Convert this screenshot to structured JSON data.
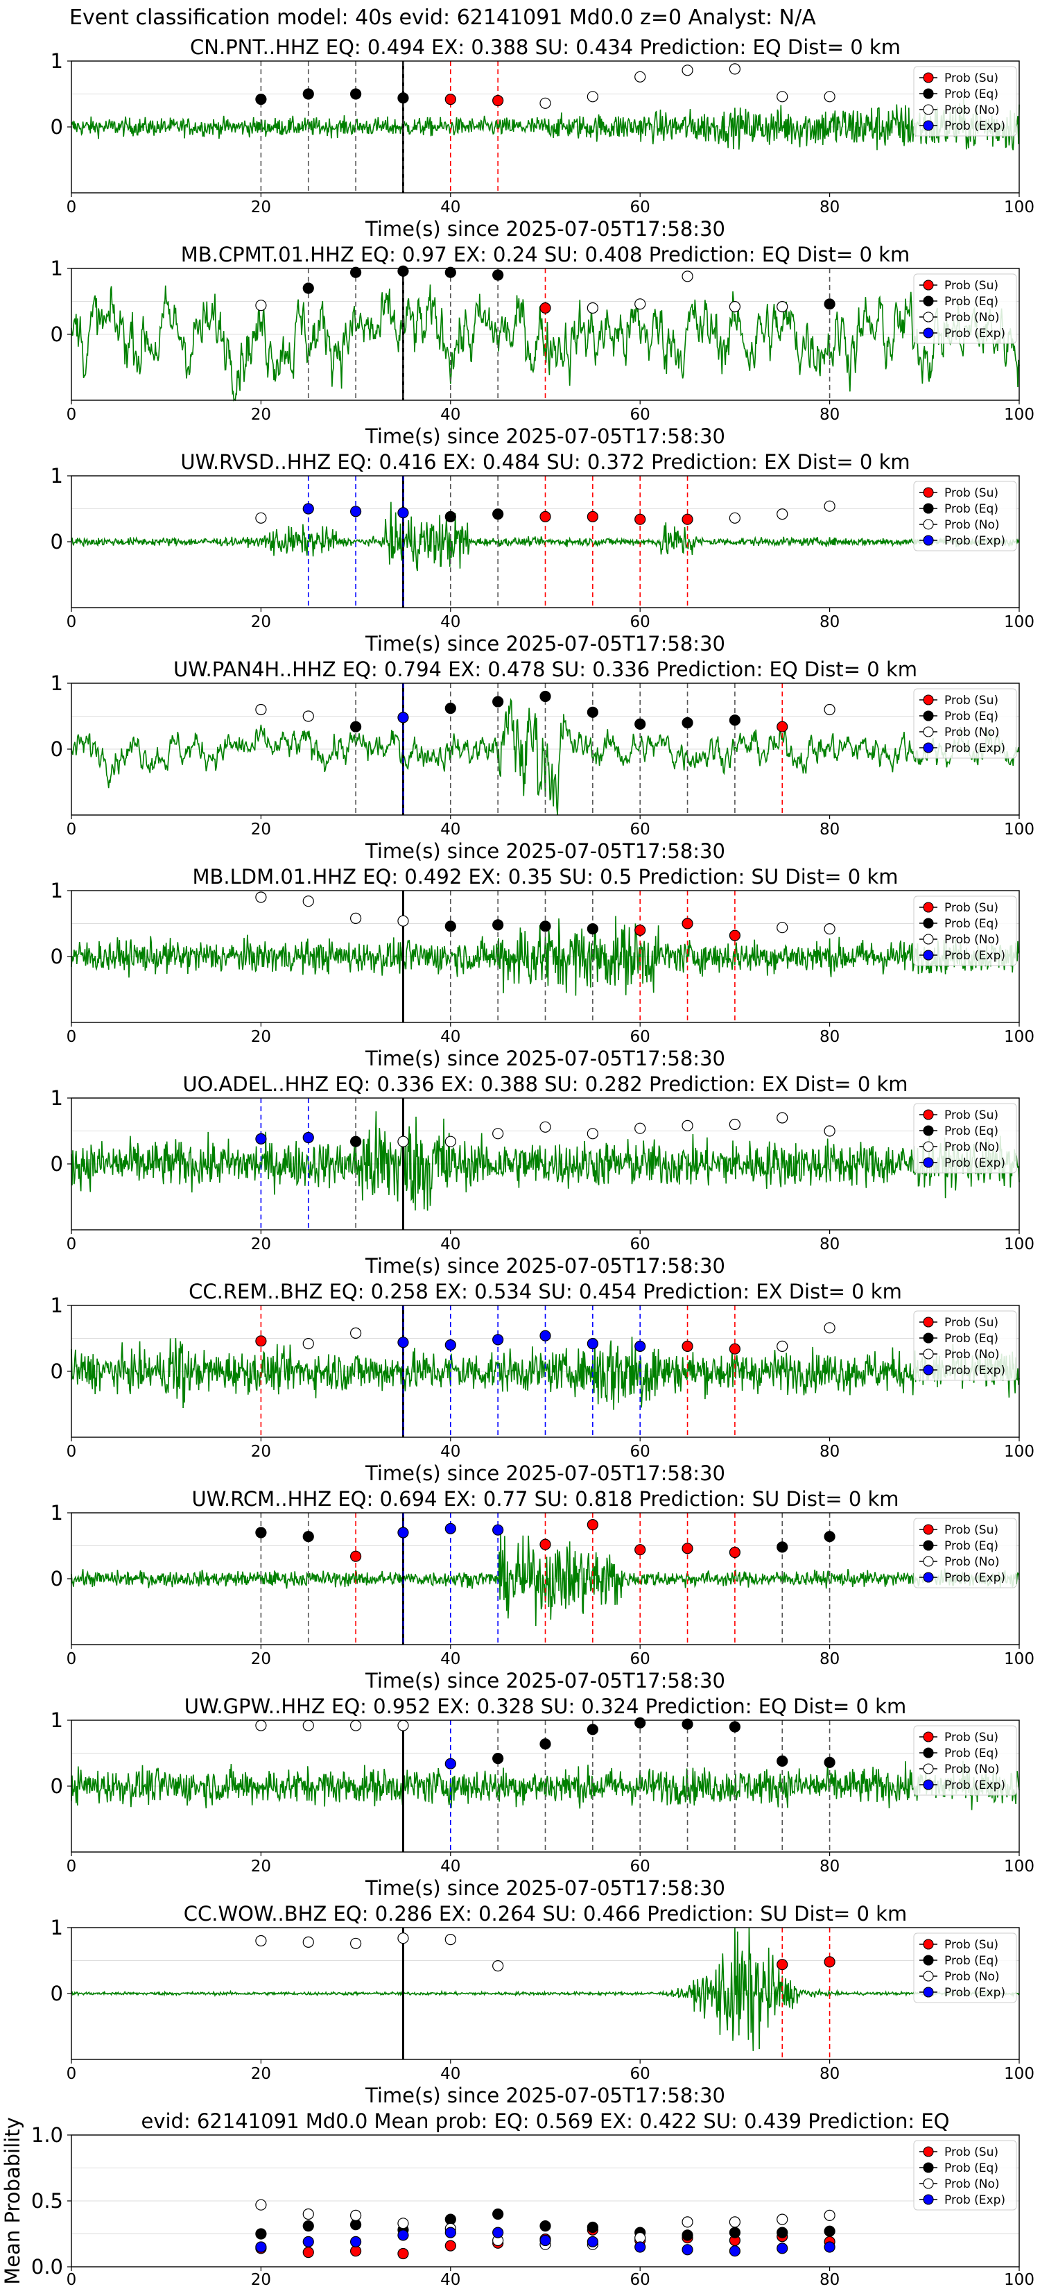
{
  "figure_title": "Event classification model: 40s evid: 62141091 Md0.0 z=0 Analyst: N/A",
  "colors": {
    "waveform": "#008000",
    "su": "#ff0000",
    "eq": "#000000",
    "no": "#ffffff",
    "exp": "#0000ff",
    "grid": "#dddddd"
  },
  "legend": [
    "Prob (Su)",
    "Prob (Eq)",
    "Prob (No)",
    "Prob (Exp)"
  ],
  "chart_data": [
    {
      "type": "line",
      "station": "CN.PNT..HHZ",
      "title": "CN.PNT..HHZ   EQ: 0.494  EX: 0.388  SU: 0.434   Prediction: EQ    Dist= 0 km",
      "xlabel": "Time(s) since 2025-07-05T17:58:30",
      "xlim": [
        0,
        100
      ],
      "ylim": [
        -1,
        1
      ],
      "xticks": [
        "0",
        "20",
        "40",
        "60",
        "80",
        "100"
      ],
      "yticks": [
        "1",
        "0"
      ],
      "event_time": 35,
      "points": [
        {
          "t": 20,
          "p": 0.42,
          "cls": "eq"
        },
        {
          "t": 25,
          "p": 0.5,
          "cls": "eq"
        },
        {
          "t": 30,
          "p": 0.5,
          "cls": "eq"
        },
        {
          "t": 35,
          "p": 0.44,
          "cls": "eq"
        },
        {
          "t": 40,
          "p": 0.42,
          "cls": "su"
        },
        {
          "t": 45,
          "p": 0.4,
          "cls": "su"
        },
        {
          "t": 50,
          "p": 0.36,
          "cls": "no"
        },
        {
          "t": 55,
          "p": 0.46,
          "cls": "no"
        },
        {
          "t": 60,
          "p": 0.76,
          "cls": "no"
        },
        {
          "t": 65,
          "p": 0.86,
          "cls": "no"
        },
        {
          "t": 70,
          "p": 0.88,
          "cls": "no"
        },
        {
          "t": 75,
          "p": 0.46,
          "cls": "no"
        },
        {
          "t": 80,
          "p": 0.46,
          "cls": "no"
        }
      ]
    },
    {
      "type": "line",
      "station": "MB.CPMT.01.HHZ",
      "title": "MB.CPMT.01.HHZ   EQ: 0.97  EX: 0.24  SU: 0.408   Prediction: EQ    Dist= 0 km",
      "xlabel": "Time(s) since 2025-07-05T17:58:30",
      "xlim": [
        0,
        100
      ],
      "ylim": [
        -1,
        1
      ],
      "xticks": [
        "0",
        "20",
        "40",
        "60",
        "80",
        "100"
      ],
      "yticks": [
        "1",
        "0"
      ],
      "event_time": 35,
      "points": [
        {
          "t": 20,
          "p": 0.44,
          "cls": "no"
        },
        {
          "t": 25,
          "p": 0.7,
          "cls": "eq"
        },
        {
          "t": 30,
          "p": 0.94,
          "cls": "eq"
        },
        {
          "t": 35,
          "p": 0.96,
          "cls": "eq"
        },
        {
          "t": 40,
          "p": 0.94,
          "cls": "eq"
        },
        {
          "t": 45,
          "p": 0.9,
          "cls": "eq"
        },
        {
          "t": 50,
          "p": 0.4,
          "cls": "su"
        },
        {
          "t": 55,
          "p": 0.4,
          "cls": "no"
        },
        {
          "t": 60,
          "p": 0.46,
          "cls": "no"
        },
        {
          "t": 65,
          "p": 0.88,
          "cls": "no"
        },
        {
          "t": 70,
          "p": 0.42,
          "cls": "no"
        },
        {
          "t": 75,
          "p": 0.42,
          "cls": "no"
        },
        {
          "t": 80,
          "p": 0.46,
          "cls": "eq"
        }
      ]
    },
    {
      "type": "line",
      "station": "UW.RVSD..HHZ",
      "title": "UW.RVSD..HHZ   EQ: 0.416  EX: 0.484  SU: 0.372   Prediction: EX    Dist= 0 km",
      "xlabel": "Time(s) since 2025-07-05T17:58:30",
      "xlim": [
        0,
        100
      ],
      "ylim": [
        -1,
        1
      ],
      "xticks": [
        "0",
        "20",
        "40",
        "60",
        "80",
        "100"
      ],
      "yticks": [
        "1",
        "0"
      ],
      "event_time": 35,
      "points": [
        {
          "t": 20,
          "p": 0.36,
          "cls": "no"
        },
        {
          "t": 25,
          "p": 0.5,
          "cls": "exp"
        },
        {
          "t": 30,
          "p": 0.46,
          "cls": "exp"
        },
        {
          "t": 35,
          "p": 0.44,
          "cls": "exp"
        },
        {
          "t": 40,
          "p": 0.38,
          "cls": "eq"
        },
        {
          "t": 45,
          "p": 0.42,
          "cls": "eq"
        },
        {
          "t": 50,
          "p": 0.38,
          "cls": "su"
        },
        {
          "t": 55,
          "p": 0.38,
          "cls": "su"
        },
        {
          "t": 60,
          "p": 0.34,
          "cls": "su"
        },
        {
          "t": 65,
          "p": 0.34,
          "cls": "su"
        },
        {
          "t": 70,
          "p": 0.36,
          "cls": "no"
        },
        {
          "t": 75,
          "p": 0.42,
          "cls": "no"
        },
        {
          "t": 80,
          "p": 0.54,
          "cls": "no"
        }
      ]
    },
    {
      "type": "line",
      "station": "UW.PAN4H..HHZ",
      "title": "UW.PAN4H..HHZ   EQ: 0.794  EX: 0.478  SU: 0.336   Prediction: EQ    Dist= 0 km",
      "xlabel": "Time(s) since 2025-07-05T17:58:30",
      "xlim": [
        0,
        100
      ],
      "ylim": [
        -1,
        1
      ],
      "xticks": [
        "0",
        "20",
        "40",
        "60",
        "80",
        "100"
      ],
      "yticks": [
        "1",
        "0"
      ],
      "event_time": 35,
      "points": [
        {
          "t": 20,
          "p": 0.6,
          "cls": "no"
        },
        {
          "t": 25,
          "p": 0.5,
          "cls": "no"
        },
        {
          "t": 30,
          "p": 0.34,
          "cls": "eq"
        },
        {
          "t": 35,
          "p": 0.48,
          "cls": "exp"
        },
        {
          "t": 40,
          "p": 0.62,
          "cls": "eq"
        },
        {
          "t": 45,
          "p": 0.72,
          "cls": "eq"
        },
        {
          "t": 50,
          "p": 0.8,
          "cls": "eq"
        },
        {
          "t": 55,
          "p": 0.56,
          "cls": "eq"
        },
        {
          "t": 60,
          "p": 0.38,
          "cls": "eq"
        },
        {
          "t": 65,
          "p": 0.4,
          "cls": "eq"
        },
        {
          "t": 70,
          "p": 0.44,
          "cls": "eq"
        },
        {
          "t": 75,
          "p": 0.34,
          "cls": "su"
        },
        {
          "t": 80,
          "p": 0.6,
          "cls": "no"
        }
      ]
    },
    {
      "type": "line",
      "station": "MB.LDM.01.HHZ",
      "title": "MB.LDM.01.HHZ   EQ: 0.492  EX: 0.35  SU: 0.5   Prediction: SU    Dist= 0 km",
      "xlabel": "Time(s) since 2025-07-05T17:58:30",
      "xlim": [
        0,
        100
      ],
      "ylim": [
        -1,
        1
      ],
      "xticks": [
        "0",
        "20",
        "40",
        "60",
        "80",
        "100"
      ],
      "yticks": [
        "1",
        "0"
      ],
      "event_time": 35,
      "points": [
        {
          "t": 20,
          "p": 0.9,
          "cls": "no"
        },
        {
          "t": 25,
          "p": 0.84,
          "cls": "no"
        },
        {
          "t": 30,
          "p": 0.58,
          "cls": "no"
        },
        {
          "t": 35,
          "p": 0.54,
          "cls": "no"
        },
        {
          "t": 40,
          "p": 0.46,
          "cls": "eq"
        },
        {
          "t": 45,
          "p": 0.48,
          "cls": "eq"
        },
        {
          "t": 50,
          "p": 0.46,
          "cls": "eq"
        },
        {
          "t": 55,
          "p": 0.42,
          "cls": "eq"
        },
        {
          "t": 60,
          "p": 0.4,
          "cls": "su"
        },
        {
          "t": 65,
          "p": 0.5,
          "cls": "su"
        },
        {
          "t": 70,
          "p": 0.32,
          "cls": "su"
        },
        {
          "t": 75,
          "p": 0.44,
          "cls": "no"
        },
        {
          "t": 80,
          "p": 0.42,
          "cls": "no"
        }
      ]
    },
    {
      "type": "line",
      "station": "UO.ADEL..HHZ",
      "title": "UO.ADEL..HHZ   EQ: 0.336  EX: 0.388  SU: 0.282   Prediction: EX    Dist= 0 km",
      "xlabel": "Time(s) since 2025-07-05T17:58:30",
      "xlim": [
        0,
        100
      ],
      "ylim": [
        -1,
        1
      ],
      "xticks": [
        "0",
        "20",
        "40",
        "60",
        "80",
        "100"
      ],
      "yticks": [
        "1",
        "0"
      ],
      "event_time": 35,
      "points": [
        {
          "t": 20,
          "p": 0.38,
          "cls": "exp"
        },
        {
          "t": 25,
          "p": 0.4,
          "cls": "exp"
        },
        {
          "t": 30,
          "p": 0.34,
          "cls": "eq"
        },
        {
          "t": 35,
          "p": 0.34,
          "cls": "no"
        },
        {
          "t": 40,
          "p": 0.34,
          "cls": "no"
        },
        {
          "t": 45,
          "p": 0.46,
          "cls": "no"
        },
        {
          "t": 50,
          "p": 0.56,
          "cls": "no"
        },
        {
          "t": 55,
          "p": 0.46,
          "cls": "no"
        },
        {
          "t": 60,
          "p": 0.54,
          "cls": "no"
        },
        {
          "t": 65,
          "p": 0.58,
          "cls": "no"
        },
        {
          "t": 70,
          "p": 0.6,
          "cls": "no"
        },
        {
          "t": 75,
          "p": 0.7,
          "cls": "no"
        },
        {
          "t": 80,
          "p": 0.5,
          "cls": "no"
        }
      ]
    },
    {
      "type": "line",
      "station": "CC.REM..BHZ",
      "title": "CC.REM..BHZ   EQ: 0.258  EX: 0.534  SU: 0.454   Prediction: EX    Dist= 0 km",
      "xlabel": "Time(s) since 2025-07-05T17:58:30",
      "xlim": [
        0,
        100
      ],
      "ylim": [
        -1,
        1
      ],
      "xticks": [
        "0",
        "20",
        "40",
        "60",
        "80",
        "100"
      ],
      "yticks": [
        "1",
        "0"
      ],
      "event_time": 35,
      "points": [
        {
          "t": 20,
          "p": 0.46,
          "cls": "su"
        },
        {
          "t": 25,
          "p": 0.42,
          "cls": "no"
        },
        {
          "t": 30,
          "p": 0.58,
          "cls": "no"
        },
        {
          "t": 35,
          "p": 0.44,
          "cls": "exp"
        },
        {
          "t": 40,
          "p": 0.4,
          "cls": "exp"
        },
        {
          "t": 45,
          "p": 0.48,
          "cls": "exp"
        },
        {
          "t": 50,
          "p": 0.54,
          "cls": "exp"
        },
        {
          "t": 55,
          "p": 0.42,
          "cls": "exp"
        },
        {
          "t": 60,
          "p": 0.38,
          "cls": "exp"
        },
        {
          "t": 65,
          "p": 0.38,
          "cls": "su"
        },
        {
          "t": 70,
          "p": 0.34,
          "cls": "su"
        },
        {
          "t": 75,
          "p": 0.38,
          "cls": "no"
        },
        {
          "t": 80,
          "p": 0.66,
          "cls": "no"
        }
      ]
    },
    {
      "type": "line",
      "station": "UW.RCM..HHZ",
      "title": "UW.RCM..HHZ   EQ: 0.694  EX: 0.77  SU: 0.818   Prediction: SU    Dist= 0 km",
      "xlabel": "Time(s) since 2025-07-05T17:58:30",
      "xlim": [
        0,
        100
      ],
      "ylim": [
        -1,
        1
      ],
      "xticks": [
        "0",
        "20",
        "40",
        "60",
        "80",
        "100"
      ],
      "yticks": [
        "1",
        "0"
      ],
      "event_time": 35,
      "points": [
        {
          "t": 20,
          "p": 0.7,
          "cls": "eq"
        },
        {
          "t": 25,
          "p": 0.64,
          "cls": "eq"
        },
        {
          "t": 30,
          "p": 0.34,
          "cls": "su"
        },
        {
          "t": 35,
          "p": 0.7,
          "cls": "exp"
        },
        {
          "t": 40,
          "p": 0.76,
          "cls": "exp"
        },
        {
          "t": 45,
          "p": 0.74,
          "cls": "exp"
        },
        {
          "t": 50,
          "p": 0.52,
          "cls": "su"
        },
        {
          "t": 55,
          "p": 0.82,
          "cls": "su"
        },
        {
          "t": 60,
          "p": 0.44,
          "cls": "su"
        },
        {
          "t": 65,
          "p": 0.46,
          "cls": "su"
        },
        {
          "t": 70,
          "p": 0.4,
          "cls": "su"
        },
        {
          "t": 75,
          "p": 0.48,
          "cls": "eq"
        },
        {
          "t": 80,
          "p": 0.64,
          "cls": "eq"
        }
      ]
    },
    {
      "type": "line",
      "station": "UW.GPW..HHZ",
      "title": "UW.GPW..HHZ   EQ: 0.952  EX: 0.328  SU: 0.324   Prediction: EQ    Dist= 0 km",
      "xlabel": "Time(s) since 2025-07-05T17:58:30",
      "xlim": [
        0,
        100
      ],
      "ylim": [
        -1,
        1
      ],
      "xticks": [
        "0",
        "20",
        "40",
        "60",
        "80",
        "100"
      ],
      "yticks": [
        "1",
        "0"
      ],
      "event_time": 35,
      "points": [
        {
          "t": 20,
          "p": 0.92,
          "cls": "no"
        },
        {
          "t": 25,
          "p": 0.92,
          "cls": "no"
        },
        {
          "t": 30,
          "p": 0.92,
          "cls": "no"
        },
        {
          "t": 35,
          "p": 0.92,
          "cls": "no"
        },
        {
          "t": 40,
          "p": 0.34,
          "cls": "exp"
        },
        {
          "t": 45,
          "p": 0.42,
          "cls": "eq"
        },
        {
          "t": 50,
          "p": 0.64,
          "cls": "eq"
        },
        {
          "t": 55,
          "p": 0.86,
          "cls": "eq"
        },
        {
          "t": 60,
          "p": 0.96,
          "cls": "eq"
        },
        {
          "t": 65,
          "p": 0.94,
          "cls": "eq"
        },
        {
          "t": 70,
          "p": 0.9,
          "cls": "eq"
        },
        {
          "t": 75,
          "p": 0.38,
          "cls": "eq"
        },
        {
          "t": 80,
          "p": 0.36,
          "cls": "eq"
        }
      ]
    },
    {
      "type": "line",
      "station": "CC.WOW..BHZ",
      "title": "CC.WOW..BHZ   EQ: 0.286  EX: 0.264  SU: 0.466   Prediction: SU    Dist= 0 km",
      "xlabel": "Time(s) since 2025-07-05T17:58:30",
      "xlim": [
        0,
        100
      ],
      "ylim": [
        -1,
        1
      ],
      "xticks": [
        "0",
        "20",
        "40",
        "60",
        "80",
        "100"
      ],
      "yticks": [
        "1",
        "0"
      ],
      "event_time": 35,
      "points": [
        {
          "t": 20,
          "p": 0.8,
          "cls": "no"
        },
        {
          "t": 25,
          "p": 0.78,
          "cls": "no"
        },
        {
          "t": 30,
          "p": 0.76,
          "cls": "no"
        },
        {
          "t": 35,
          "p": 0.84,
          "cls": "no"
        },
        {
          "t": 40,
          "p": 0.82,
          "cls": "no"
        },
        {
          "t": 45,
          "p": 0.42,
          "cls": "no"
        },
        {
          "t": 75,
          "p": 0.44,
          "cls": "su"
        },
        {
          "t": 80,
          "p": 0.48,
          "cls": "su"
        }
      ]
    },
    {
      "type": "scatter",
      "station": "mean",
      "title": "evid: 62141091  Md0.0   Mean prob:   EQ: 0.569  EX: 0.422  SU: 0.439   Prediction: EQ",
      "ylabel": "Mean Probability",
      "xlim": [
        0,
        100
      ],
      "ylim": [
        0,
        1
      ],
      "xticks": [
        "0",
        "20",
        "40",
        "60",
        "80",
        "100"
      ],
      "yticks": [
        "1.0",
        "0.5",
        "0.0"
      ],
      "series": [
        {
          "name": "Prob (Su)",
          "cls": "su",
          "x": [
            20,
            25,
            30,
            35,
            40,
            45,
            50,
            55,
            60,
            65,
            70,
            75,
            80
          ],
          "y": [
            0.14,
            0.11,
            0.12,
            0.1,
            0.16,
            0.18,
            0.21,
            0.28,
            0.2,
            0.22,
            0.2,
            0.23,
            0.19
          ]
        },
        {
          "name": "Prob (Eq)",
          "cls": "eq",
          "x": [
            20,
            25,
            30,
            35,
            40,
            45,
            50,
            55,
            60,
            65,
            70,
            75,
            80
          ],
          "y": [
            0.25,
            0.31,
            0.32,
            0.28,
            0.36,
            0.4,
            0.31,
            0.3,
            0.26,
            0.24,
            0.26,
            0.26,
            0.27
          ]
        },
        {
          "name": "Prob (No)",
          "cls": "no",
          "x": [
            20,
            25,
            30,
            35,
            40,
            45,
            50,
            55,
            60,
            65,
            70,
            75,
            80
          ],
          "y": [
            0.47,
            0.4,
            0.39,
            0.33,
            0.29,
            0.2,
            0.17,
            0.17,
            0.22,
            0.34,
            0.34,
            0.36,
            0.39
          ]
        },
        {
          "name": "Prob (Exp)",
          "cls": "exp",
          "x": [
            20,
            25,
            30,
            35,
            40,
            45,
            50,
            55,
            60,
            65,
            70,
            75,
            80
          ],
          "y": [
            0.15,
            0.19,
            0.19,
            0.24,
            0.26,
            0.26,
            0.2,
            0.19,
            0.15,
            0.13,
            0.12,
            0.14,
            0.15
          ]
        }
      ]
    }
  ]
}
